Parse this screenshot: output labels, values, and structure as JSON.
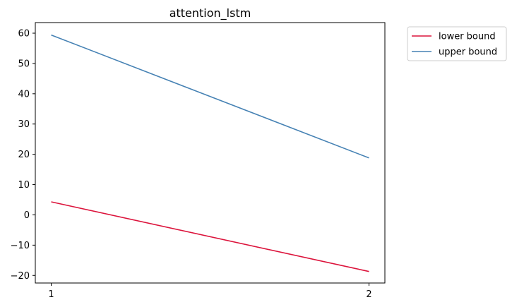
{
  "chart_data": {
    "type": "line",
    "title": "attention_lstm",
    "xlabel": "",
    "ylabel": "",
    "x": [
      1,
      2
    ],
    "x_ticks": [
      1,
      2
    ],
    "y_ticks": [
      -20,
      -10,
      0,
      10,
      20,
      30,
      40,
      50,
      60
    ],
    "ylim": [
      -22.5,
      63.5
    ],
    "grid": false,
    "legend_position": "outside top-right",
    "series": [
      {
        "name": "lower bound",
        "color": "#dc143c",
        "values": [
          4.3,
          -18.7
        ]
      },
      {
        "name": "upper bound",
        "color": "#4682b4",
        "values": [
          59.4,
          18.8
        ]
      }
    ]
  }
}
